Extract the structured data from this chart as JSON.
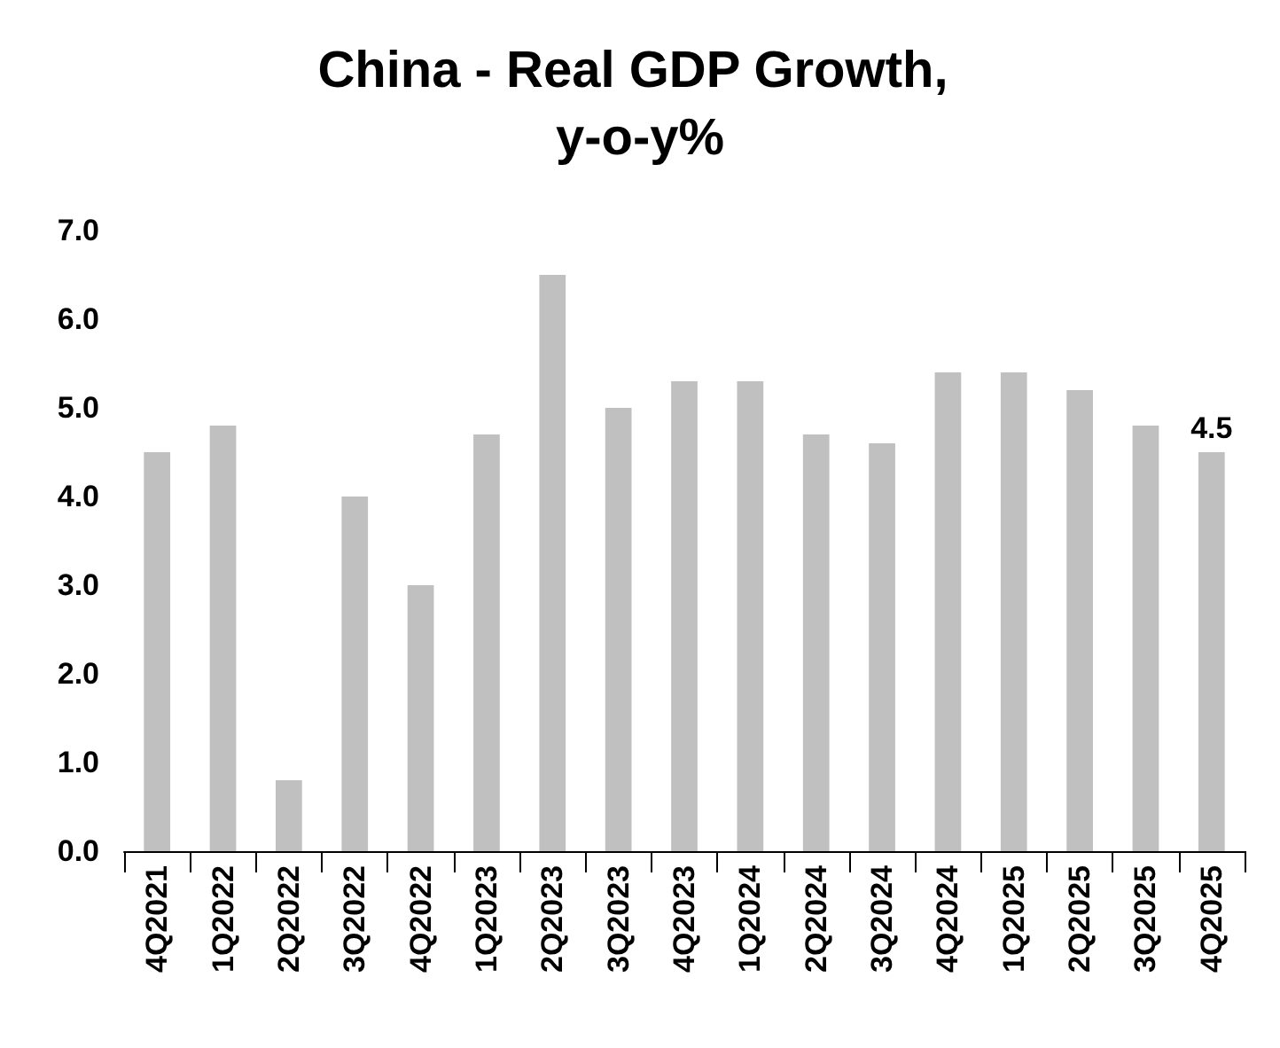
{
  "chart_data": {
    "type": "bar",
    "title": "China - Real GDP Growth, y-o-y%",
    "categories": [
      "4Q2021",
      "1Q2022",
      "2Q2022",
      "3Q2022",
      "4Q2022",
      "1Q2023",
      "2Q2023",
      "3Q2023",
      "4Q2023",
      "1Q2024",
      "2Q2024",
      "3Q2024",
      "4Q2024",
      "1Q2025",
      "2Q2025",
      "3Q2025",
      "4Q2025"
    ],
    "values": [
      4.5,
      4.8,
      0.8,
      4.0,
      3.0,
      4.7,
      6.5,
      5.0,
      5.3,
      5.3,
      4.7,
      4.6,
      5.4,
      5.4,
      5.2,
      4.8,
      4.5
    ],
    "value_labels": [
      null,
      null,
      null,
      null,
      null,
      null,
      null,
      null,
      null,
      null,
      null,
      null,
      null,
      null,
      null,
      null,
      "4.5"
    ],
    "color": "#c0c0c0",
    "ylim": [
      0,
      7
    ],
    "yticks": [
      {
        "value": 0,
        "label": "0.0"
      },
      {
        "value": 1,
        "label": "1.0"
      },
      {
        "value": 2,
        "label": "2.0"
      },
      {
        "value": 3,
        "label": "3.0"
      },
      {
        "value": 4,
        "label": "4.0"
      },
      {
        "value": 5,
        "label": "5.0"
      },
      {
        "value": 6,
        "label": "6.0"
      },
      {
        "value": 7,
        "label": "7.0"
      }
    ],
    "grid": false
  }
}
